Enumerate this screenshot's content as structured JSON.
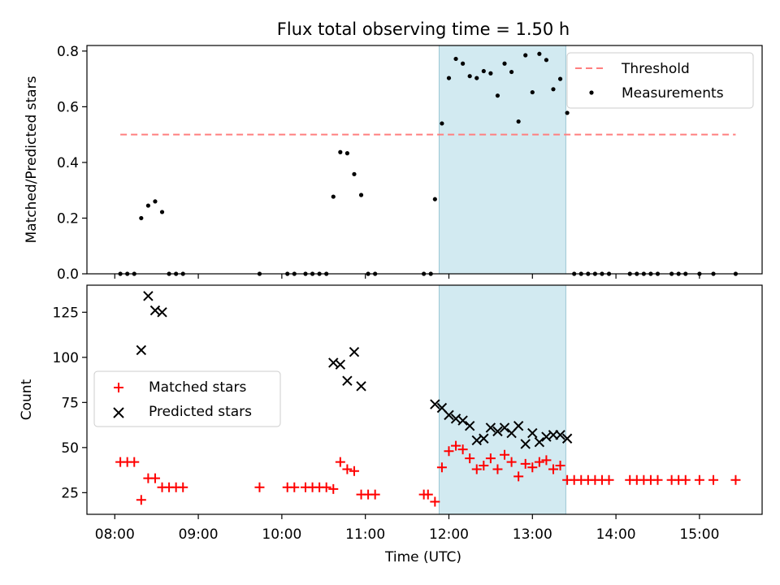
{
  "figure_title": "Flux total observing time = 1.50 h",
  "colors": {
    "threshold": "#ff7f7f",
    "measurements": "#000000",
    "matched": "#ff0000",
    "predicted": "#000000",
    "span": "#add8e6"
  },
  "chart_data": [
    {
      "type": "scatter",
      "panel": "top",
      "ylabel": "Matched/Predicted stars",
      "ylim": [
        0,
        0.82
      ],
      "yticks": [
        "0.0",
        "0.2",
        "0.4",
        "0.6",
        "0.8"
      ],
      "ytick_values": [
        0,
        0.2,
        0.4,
        0.6,
        0.8
      ],
      "xlim": [
        "07:40",
        "15:45"
      ],
      "x_tick_labels_shown": false,
      "highlight_span": [
        "11:53",
        "13:24"
      ],
      "legend": {
        "placement": "top-right",
        "entries": [
          "Threshold",
          "Measurements"
        ]
      },
      "threshold": {
        "name": "Threshold",
        "value": 0.5,
        "x_range": [
          "08:04",
          "15:26"
        ],
        "style": "dashed"
      },
      "series": [
        {
          "name": "Measurements",
          "points": [
            [
              "08:04",
              0
            ],
            [
              "08:09",
              0
            ],
            [
              "08:14",
              0
            ],
            [
              "08:19",
              0.2
            ],
            [
              "08:24",
              0.245
            ],
            [
              "08:29",
              0.26
            ],
            [
              "08:34",
              0.222
            ],
            [
              "08:39",
              0
            ],
            [
              "08:44",
              0
            ],
            [
              "08:49",
              0
            ],
            [
              "09:44",
              0
            ],
            [
              "10:04",
              0
            ],
            [
              "10:09",
              0
            ],
            [
              "10:17",
              0
            ],
            [
              "10:22",
              0
            ],
            [
              "10:27",
              0
            ],
            [
              "10:32",
              0
            ],
            [
              "10:37",
              0.277
            ],
            [
              "10:42",
              0.437
            ],
            [
              "10:47",
              0.433
            ],
            [
              "10:52",
              0.358
            ],
            [
              "10:57",
              0.283
            ],
            [
              "11:02",
              0
            ],
            [
              "11:07",
              0
            ],
            [
              "11:42",
              0
            ],
            [
              "11:47",
              0
            ],
            [
              "11:50",
              0.268
            ],
            [
              "11:55",
              0.54
            ],
            [
              "12:00",
              0.703
            ],
            [
              "12:05",
              0.772
            ],
            [
              "12:10",
              0.755
            ],
            [
              "12:15",
              0.71
            ],
            [
              "12:20",
              0.703
            ],
            [
              "12:25",
              0.728
            ],
            [
              "12:30",
              0.72
            ],
            [
              "12:35",
              0.64
            ],
            [
              "12:40",
              0.755
            ],
            [
              "12:45",
              0.725
            ],
            [
              "12:50",
              0.547
            ],
            [
              "12:55",
              0.785
            ],
            [
              "13:00",
              0.652
            ],
            [
              "13:05",
              0.79
            ],
            [
              "13:10",
              0.768
            ],
            [
              "13:15",
              0.663
            ],
            [
              "13:20",
              0.7
            ],
            [
              "13:25",
              0.578
            ],
            [
              "13:30",
              0
            ],
            [
              "13:35",
              0
            ],
            [
              "13:40",
              0
            ],
            [
              "13:45",
              0
            ],
            [
              "13:50",
              0
            ],
            [
              "13:55",
              0
            ],
            [
              "14:10",
              0
            ],
            [
              "14:15",
              0
            ],
            [
              "14:20",
              0
            ],
            [
              "14:25",
              0
            ],
            [
              "14:30",
              0
            ],
            [
              "14:40",
              0
            ],
            [
              "14:45",
              0
            ],
            [
              "14:50",
              0
            ],
            [
              "15:00",
              0
            ],
            [
              "15:10",
              0
            ],
            [
              "15:26",
              0
            ]
          ]
        }
      ]
    },
    {
      "type": "scatter",
      "panel": "bottom",
      "xlabel": "Time (UTC)",
      "ylabel": "Count",
      "ylim": [
        13,
        140
      ],
      "yticks": [
        "25",
        "50",
        "75",
        "100",
        "125"
      ],
      "ytick_values": [
        25,
        50,
        75,
        100,
        125
      ],
      "xlim": [
        "07:40",
        "15:45"
      ],
      "xticks": [
        "08:00",
        "09:00",
        "10:00",
        "11:00",
        "12:00",
        "13:00",
        "14:00",
        "15:00"
      ],
      "highlight_span": [
        "11:53",
        "13:24"
      ],
      "legend": {
        "placement": "center-left",
        "entries": [
          "Matched stars",
          "Predicted stars"
        ]
      },
      "series": [
        {
          "name": "Matched stars",
          "marker": "+",
          "points": [
            [
              "08:04",
              42
            ],
            [
              "08:09",
              42
            ],
            [
              "08:14",
              42
            ],
            [
              "08:19",
              21
            ],
            [
              "08:24",
              33
            ],
            [
              "08:29",
              33
            ],
            [
              "08:34",
              28
            ],
            [
              "08:39",
              28
            ],
            [
              "08:44",
              28
            ],
            [
              "08:49",
              28
            ],
            [
              "09:44",
              28
            ],
            [
              "10:04",
              28
            ],
            [
              "10:09",
              28
            ],
            [
              "10:17",
              28
            ],
            [
              "10:22",
              28
            ],
            [
              "10:27",
              28
            ],
            [
              "10:32",
              28
            ],
            [
              "10:37",
              27
            ],
            [
              "10:42",
              42
            ],
            [
              "10:47",
              38
            ],
            [
              "10:52",
              37
            ],
            [
              "10:57",
              24
            ],
            [
              "11:02",
              24
            ],
            [
              "11:07",
              24
            ],
            [
              "11:42",
              24
            ],
            [
              "11:45",
              24
            ],
            [
              "11:50",
              20
            ],
            [
              "11:55",
              39
            ],
            [
              "12:00",
              48
            ],
            [
              "12:05",
              51
            ],
            [
              "12:10",
              49
            ],
            [
              "12:15",
              44
            ],
            [
              "12:20",
              38
            ],
            [
              "12:25",
              40
            ],
            [
              "12:30",
              44
            ],
            [
              "12:35",
              38
            ],
            [
              "12:40",
              46
            ],
            [
              "12:45",
              42
            ],
            [
              "12:50",
              34
            ],
            [
              "12:55",
              41
            ],
            [
              "13:00",
              39
            ],
            [
              "13:05",
              42
            ],
            [
              "13:10",
              43
            ],
            [
              "13:15",
              38
            ],
            [
              "13:20",
              40
            ],
            [
              "13:25",
              32
            ],
            [
              "13:30",
              32
            ],
            [
              "13:35",
              32
            ],
            [
              "13:40",
              32
            ],
            [
              "13:45",
              32
            ],
            [
              "13:50",
              32
            ],
            [
              "13:55",
              32
            ],
            [
              "14:10",
              32
            ],
            [
              "14:15",
              32
            ],
            [
              "14:20",
              32
            ],
            [
              "14:25",
              32
            ],
            [
              "14:30",
              32
            ],
            [
              "14:40",
              32
            ],
            [
              "14:45",
              32
            ],
            [
              "14:50",
              32
            ],
            [
              "15:00",
              32
            ],
            [
              "15:10",
              32
            ],
            [
              "15:26",
              32
            ]
          ]
        },
        {
          "name": "Predicted stars",
          "marker": "x",
          "points": [
            [
              "08:19",
              104
            ],
            [
              "08:24",
              134
            ],
            [
              "08:29",
              126
            ],
            [
              "08:34",
              125
            ],
            [
              "10:37",
              97
            ],
            [
              "10:42",
              96
            ],
            [
              "10:47",
              87
            ],
            [
              "10:52",
              103
            ],
            [
              "10:57",
              84
            ],
            [
              "11:50",
              74
            ],
            [
              "11:55",
              72
            ],
            [
              "12:00",
              68
            ],
            [
              "12:05",
              66
            ],
            [
              "12:10",
              65
            ],
            [
              "12:15",
              62
            ],
            [
              "12:20",
              54
            ],
            [
              "12:25",
              55
            ],
            [
              "12:30",
              61
            ],
            [
              "12:35",
              59
            ],
            [
              "12:40",
              61
            ],
            [
              "12:45",
              58
            ],
            [
              "12:50",
              62
            ],
            [
              "12:55",
              52
            ],
            [
              "13:00",
              58
            ],
            [
              "13:05",
              53
            ],
            [
              "13:10",
              56
            ],
            [
              "13:15",
              57
            ],
            [
              "13:20",
              57
            ],
            [
              "13:25",
              55
            ]
          ]
        }
      ]
    }
  ]
}
